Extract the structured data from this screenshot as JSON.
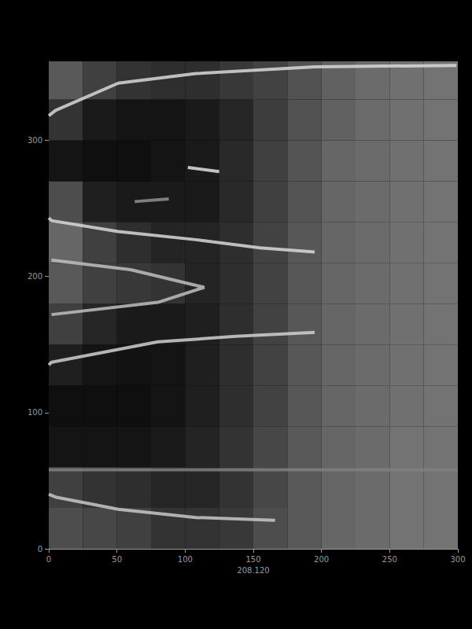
{
  "chart_data": {
    "type": "heatmap",
    "xlabel": "208.120",
    "xlim": [
      0,
      300
    ],
    "xticks": [
      0,
      50,
      100,
      150,
      200,
      250,
      300
    ],
    "ylim": [
      0,
      358
    ],
    "yticks": [
      0,
      100,
      200,
      300
    ],
    "cells": {
      "x_edges": [
        0,
        25,
        50,
        75,
        100,
        125,
        150,
        175,
        200,
        225,
        250,
        275,
        300
      ],
      "y_edges": [
        0,
        30,
        60,
        90,
        120,
        150,
        180,
        210,
        240,
        270,
        300,
        330,
        358
      ],
      "values": [
        [
          30,
          28,
          25,
          20,
          20,
          22,
          30,
          35,
          40,
          42,
          45,
          45
        ],
        [
          25,
          20,
          18,
          15,
          15,
          20,
          28,
          35,
          40,
          42,
          45,
          45
        ],
        [
          8,
          8,
          8,
          10,
          14,
          20,
          28,
          35,
          40,
          42,
          45,
          45
        ],
        [
          6,
          6,
          6,
          8,
          12,
          18,
          26,
          34,
          40,
          42,
          44,
          45
        ],
        [
          12,
          8,
          7,
          8,
          12,
          18,
          26,
          34,
          40,
          42,
          44,
          45
        ],
        [
          25,
          15,
          10,
          10,
          12,
          18,
          26,
          34,
          40,
          42,
          44,
          45
        ],
        [
          35,
          25,
          22,
          20,
          14,
          18,
          26,
          34,
          40,
          42,
          44,
          45
        ],
        [
          40,
          25,
          18,
          14,
          14,
          18,
          26,
          34,
          40,
          42,
          44,
          45
        ],
        [
          30,
          12,
          10,
          10,
          10,
          16,
          25,
          33,
          40,
          42,
          44,
          45
        ],
        [
          8,
          6,
          6,
          8,
          10,
          16,
          25,
          33,
          40,
          42,
          44,
          45
        ],
        [
          20,
          10,
          8,
          8,
          10,
          15,
          24,
          32,
          38,
          42,
          44,
          45
        ],
        [
          35,
          25,
          20,
          18,
          18,
          22,
          26,
          32,
          38,
          42,
          44,
          45
        ]
      ],
      "color_range": [
        0,
        100
      ]
    },
    "series": [
      {
        "type": "line",
        "color": "#d8d8d8",
        "x": [
          0,
          5,
          51,
          108,
          195,
          299
        ],
        "values": [
          318,
          322,
          342,
          349,
          354,
          355
        ]
      },
      {
        "type": "line",
        "color": "#d8d8d8",
        "x": [
          0,
          2,
          51,
          108,
          155,
          195
        ],
        "values": [
          243,
          241,
          233,
          227,
          221,
          218
        ]
      },
      {
        "type": "line",
        "color": "#d0d0d0",
        "x": [
          0,
          2,
          80,
          137,
          195
        ],
        "values": [
          135,
          137,
          152,
          156,
          159
        ]
      },
      {
        "type": "line",
        "color": "#c8c8c8",
        "x": [
          0,
          5,
          51,
          108,
          166
        ],
        "values": [
          40,
          38,
          29,
          23,
          21
        ]
      },
      {
        "type": "line",
        "color": "#c0c0c0",
        "x": [
          2,
          60,
          114,
          80,
          2
        ],
        "values": [
          212,
          205,
          192,
          181,
          172
        ]
      },
      {
        "type": "line",
        "color": "#e0e0e0",
        "x": [
          102,
          125
        ],
        "values": [
          280,
          277
        ]
      },
      {
        "type": "line",
        "color": "#909090",
        "x": [
          63,
          88
        ],
        "values": [
          255,
          257
        ]
      },
      {
        "type": "line",
        "color": "#808080",
        "x": [
          0,
          300
        ],
        "values": [
          58,
          58
        ]
      }
    ]
  }
}
